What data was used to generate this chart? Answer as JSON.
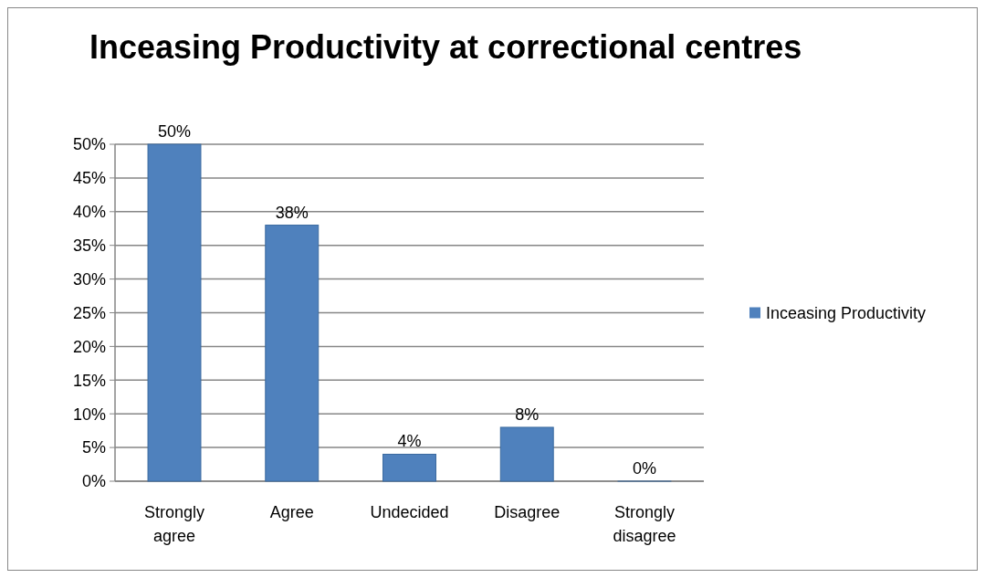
{
  "chart_data": {
    "type": "bar",
    "title": "Inceasing Productivity at correctional centres",
    "categories": [
      "Strongly agree",
      "Agree",
      "Undecided",
      "Disagree",
      "Strongly disagree"
    ],
    "series": [
      {
        "name": "Inceasing Productivity",
        "color": "#4f81bd",
        "values": [
          50,
          38,
          4,
          8,
          0
        ],
        "value_labels": [
          "50%",
          "38%",
          "4%",
          "8%",
          "0%"
        ]
      }
    ],
    "ylim": [
      0,
      50
    ],
    "yticks": [
      {
        "value": 0,
        "label": "0%"
      },
      {
        "value": 5,
        "label": "5%"
      },
      {
        "value": 10,
        "label": "10%"
      },
      {
        "value": 15,
        "label": "15%"
      },
      {
        "value": 20,
        "label": "20%"
      },
      {
        "value": 25,
        "label": "25%"
      },
      {
        "value": 30,
        "label": "30%"
      },
      {
        "value": 35,
        "label": "35%"
      },
      {
        "value": 40,
        "label": "40%"
      },
      {
        "value": 45,
        "label": "45%"
      },
      {
        "value": 50,
        "label": "50%"
      }
    ],
    "grid": "y",
    "legend": "right"
  }
}
